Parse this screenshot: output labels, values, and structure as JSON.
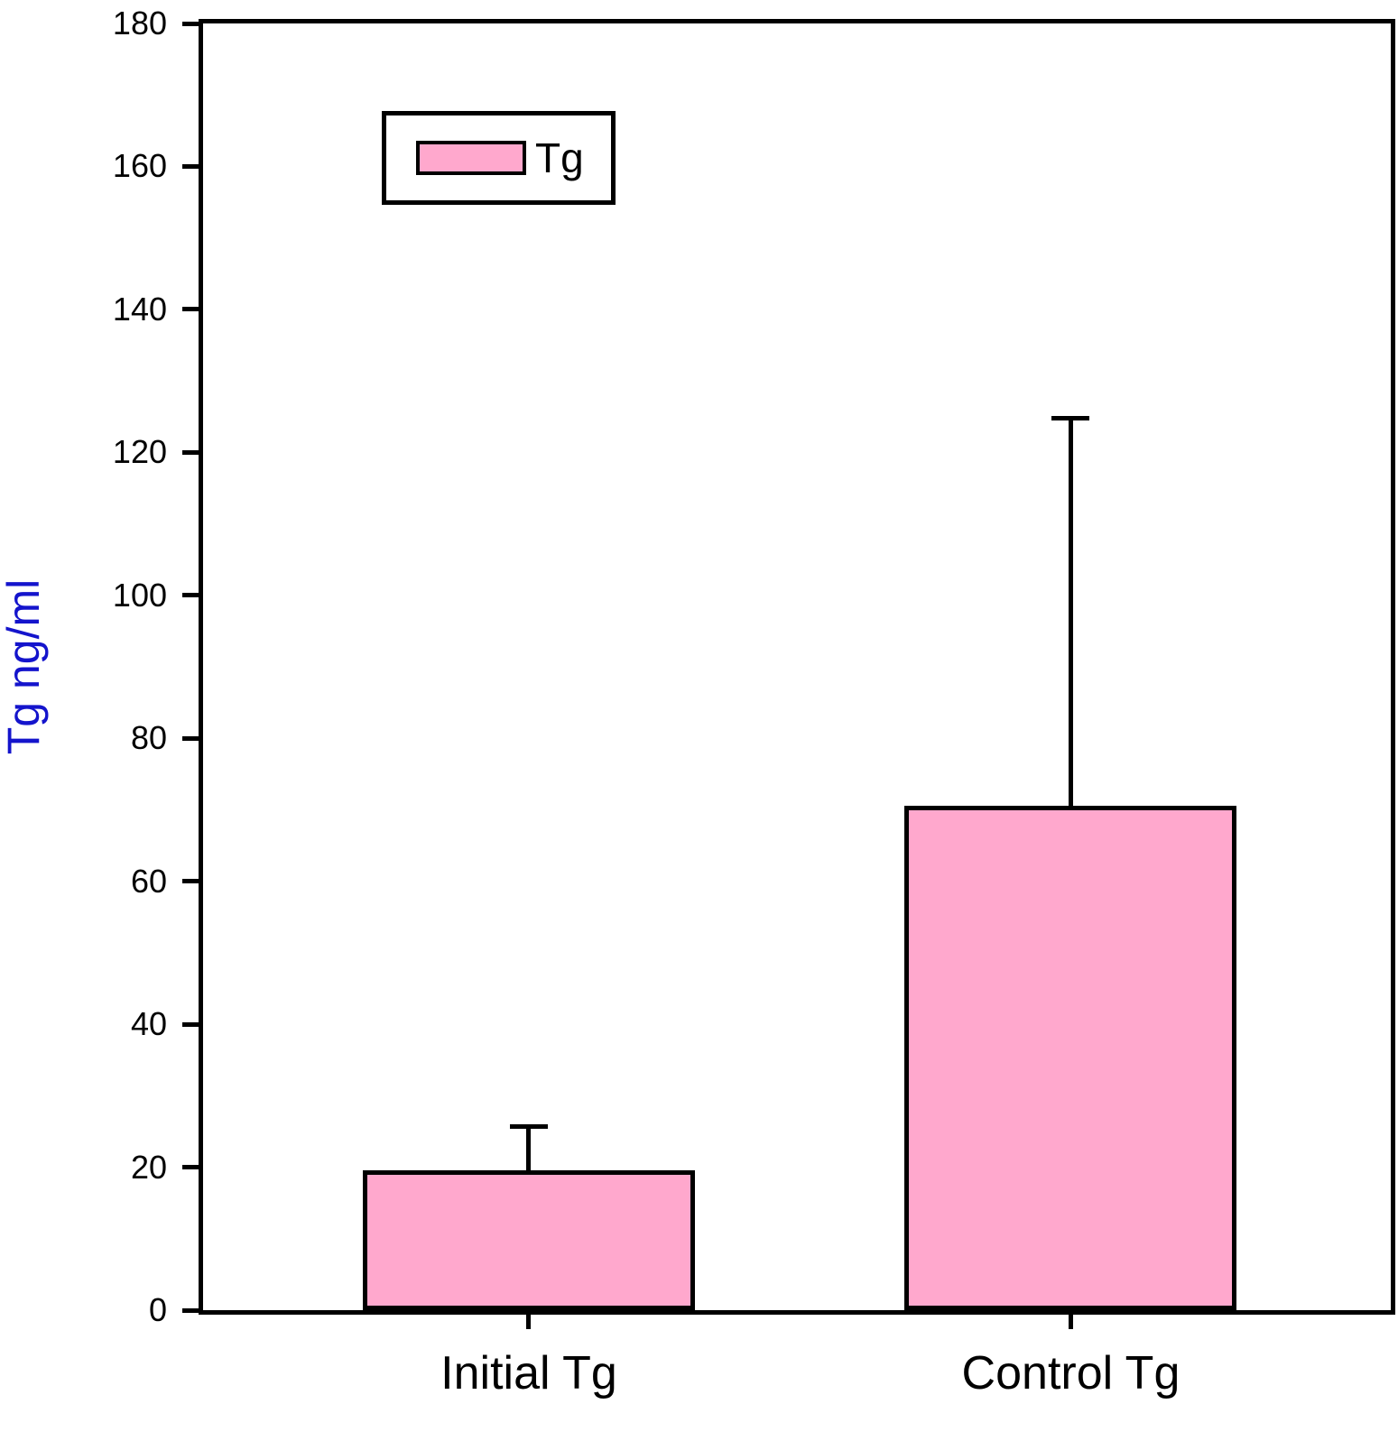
{
  "figure": {
    "background": "#ffffff",
    "frame_color": "#000000"
  },
  "chart_data": {
    "type": "bar",
    "title": "",
    "categories": [
      "Initial Tg",
      "Control Tg"
    ],
    "values": [
      19.6,
      70.5
    ],
    "error_top": [
      25.7,
      124.8
    ],
    "xlabel": "",
    "ylabel": "Tg ng/ml",
    "ylim": [
      0,
      180
    ],
    "yticks": [
      0,
      20,
      40,
      60,
      80,
      100,
      120,
      140,
      160,
      180
    ],
    "ytick_labels": [
      "0",
      "20",
      "40",
      "60",
      "80",
      "100",
      "120",
      "140",
      "160",
      "180"
    ],
    "grid": false,
    "bar_fill_color": "#FFA8CD",
    "bar_border_color": "#000000",
    "axis_color": "#000000",
    "ylabel_color": "#1414CC",
    "tick_label_color": "#000000",
    "legend": {
      "position": "top-left-inside",
      "entries": [
        {
          "label": "Tg",
          "swatch_fill": "#FFA8CD",
          "swatch_border": "#000000"
        }
      ]
    },
    "layout_hints": {
      "bar_center_fractions": [
        0.2743,
        0.7306
      ],
      "bar_width_fraction": 0.2796
    }
  }
}
